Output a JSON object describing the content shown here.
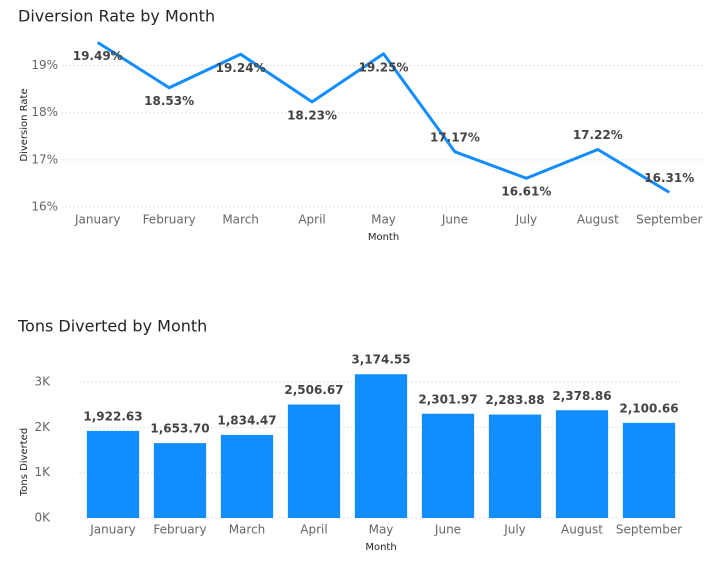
{
  "chart_data": [
    {
      "type": "line",
      "title": "Diversion Rate by Month",
      "x_label": "Month",
      "y_label": "Diversion Rate",
      "categories": [
        "January",
        "February",
        "March",
        "April",
        "May",
        "June",
        "July",
        "August",
        "September"
      ],
      "values": [
        19.49,
        18.53,
        19.24,
        18.23,
        19.25,
        17.17,
        16.61,
        17.22,
        16.31
      ],
      "value_labels": [
        "19.49%",
        "18.53%",
        "19.24%",
        "18.23%",
        "19.25%",
        "17.17%",
        "16.61%",
        "17.22%",
        "16.31%"
      ],
      "color": "#118dff",
      "ylim": [
        16,
        19.5
      ],
      "yticks": [
        {
          "value": 16,
          "label": "16%"
        },
        {
          "value": 17,
          "label": "17%"
        },
        {
          "value": 18,
          "label": "18%"
        },
        {
          "value": 19,
          "label": "19%"
        }
      ],
      "grid": true
    },
    {
      "type": "bar",
      "title": "Tons Diverted by Month",
      "x_label": "Month",
      "y_label": "Tons Diverted",
      "categories": [
        "January",
        "February",
        "March",
        "April",
        "May",
        "June",
        "July",
        "August",
        "September"
      ],
      "values": [
        1922.63,
        1653.7,
        1834.47,
        2506.67,
        3174.55,
        2301.97,
        2283.88,
        2378.86,
        2100.66
      ],
      "value_labels": [
        "1,922.63",
        "1,653.70",
        "1,834.47",
        "2,506.67",
        "3,174.55",
        "2,301.97",
        "2,283.88",
        "2,378.86",
        "2,100.66"
      ],
      "color": "#118dff",
      "ylim": [
        0,
        3500
      ],
      "yticks": [
        {
          "value": 0,
          "label": "0K"
        },
        {
          "value": 1000,
          "label": "1K"
        },
        {
          "value": 2000,
          "label": "2K"
        },
        {
          "value": 3000,
          "label": "3K"
        }
      ],
      "grid": true
    }
  ]
}
